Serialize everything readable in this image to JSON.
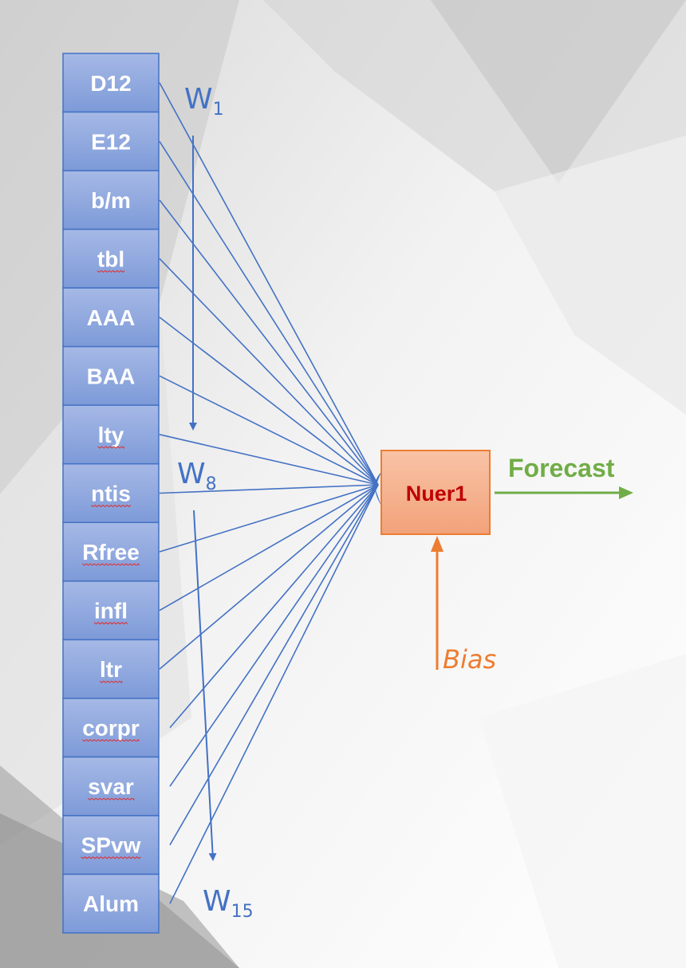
{
  "inputs": [
    "D12",
    "E12",
    "b/m",
    "tbl",
    "AAA",
    "BAA",
    "lty",
    "ntis",
    "Rfree",
    "infl",
    "ltr",
    "corpr",
    "svar",
    "SPvw",
    "Alum"
  ],
  "underlined_inputs": [
    "tbl",
    "lty",
    "ntis",
    "Rfree",
    "infl",
    "ltr",
    "corpr",
    "svar",
    "SPvw"
  ],
  "weights": [
    {
      "base": "W",
      "sub": "1"
    },
    {
      "base": "W",
      "sub": "8"
    },
    {
      "base": "W",
      "sub": "15"
    }
  ],
  "neuron": {
    "label": "Nuer1"
  },
  "output": {
    "label": "Forecast"
  },
  "bias": {
    "label": "Bias"
  },
  "colors": {
    "input_box_top": "#a6b9e6",
    "input_box_bottom": "#7d9ad8",
    "input_box_border": "#4472c4",
    "weight_lines": "#4472c4",
    "neuron_fill_top": "#f8c3a6",
    "neuron_fill_bottom": "#f2a27a",
    "neuron_border": "#ed7d31",
    "neuron_text": "#c00000",
    "forecast": "#70ad47",
    "bias": "#ed7d31"
  }
}
